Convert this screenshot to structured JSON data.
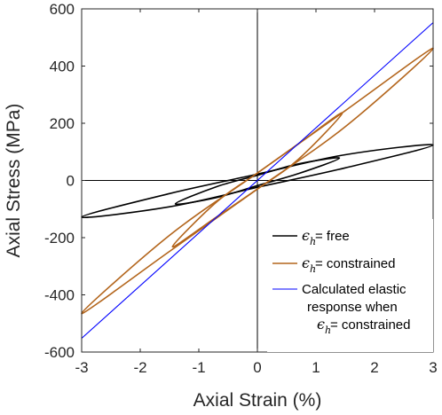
{
  "chart_data": {
    "type": "line",
    "xlabel": "Axial Strain (%)",
    "ylabel": "Axial Stress (MPa)",
    "xlim": [
      -3,
      3
    ],
    "ylim": [
      -600,
      600
    ],
    "x_ticks": [
      "-3",
      "-2",
      "-1",
      "0",
      "1",
      "2",
      "3"
    ],
    "y_ticks": [
      "-600",
      "-400",
      "-200",
      "0",
      "200",
      "400",
      "600"
    ],
    "grid": false,
    "box": true,
    "zero_lines": true,
    "legend_placement": "bottom-right, inside axes",
    "series": [
      {
        "name": "ϵh = free",
        "legend_symbol": "ϵ",
        "legend_subscript": "h",
        "legend_text": " = free",
        "color": "#000000",
        "loops": [
          {
            "x": [
              -3,
              -1.5,
              0,
              1.5,
              3,
              1.5,
              0,
              -1.5,
              -3
            ],
            "y": [
              -128,
              -92,
              -24,
              44,
              124,
              90,
              22,
              -46,
              -128
            ]
          },
          {
            "x": [
              -1.4,
              -0.7,
              0,
              0.7,
              1.4,
              0.7,
              0,
              -0.7,
              -1.4
            ],
            "y": [
              -82,
              -60,
              -18,
              24,
              78,
              58,
              18,
              -22,
              -82
            ]
          }
        ]
      },
      {
        "name": "ϵh = constrained",
        "legend_symbol": "ϵ",
        "legend_subscript": "h",
        "legend_text": " = constrained",
        "color": "#b3651c",
        "loops": [
          {
            "x": [
              -3,
              -1.5,
              0,
              1.5,
              3,
              1.5,
              0,
              -1.5,
              -3
            ],
            "y": [
              -465,
              -248,
              -30,
              188,
              462,
              244,
              26,
              -192,
              -465
            ]
          },
          {
            "x": [
              -1.45,
              -0.7,
              0,
              0.7,
              1.45,
              0.7,
              0,
              -0.7,
              -1.45
            ],
            "y": [
              -232,
              -128,
              -30,
              74,
              236,
              128,
              26,
              -76,
              -232
            ]
          }
        ]
      },
      {
        "name": "Calculated elastic response when ϵh = constrained",
        "legend_lines": [
          "Calculated elastic",
          "response when"
        ],
        "legend_symbol": "ϵ",
        "legend_subscript": "h",
        "legend_text": " = constrained",
        "color": "#0000ff",
        "x": [
          -3,
          3
        ],
        "y": [
          -552,
          552
        ]
      }
    ]
  }
}
